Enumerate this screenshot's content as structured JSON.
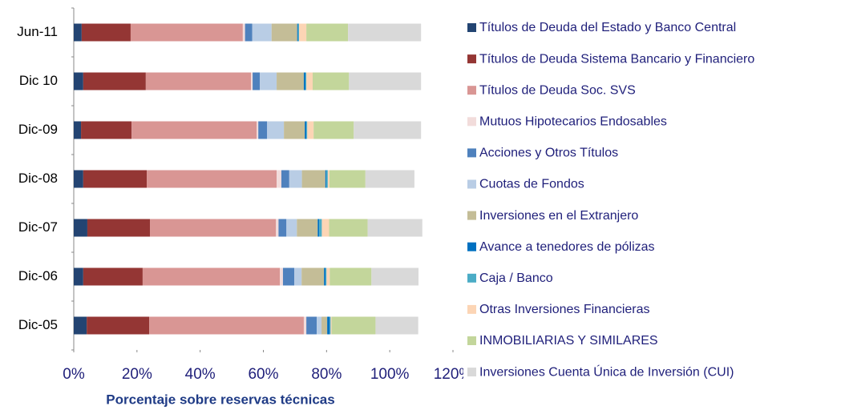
{
  "chart_data": {
    "type": "stacked_barh",
    "categories": [
      "Jun-11",
      "Dic 10",
      "Dic-09",
      "Dic-08",
      "Dic-07",
      "Dic-06",
      "Dic-05"
    ],
    "series": [
      {
        "name": "Títulos de Deuda del Estado y Banco Central",
        "color": "#234472",
        "values": [
          2.5,
          3.0,
          2.3,
          3.0,
          4.3,
          3.0,
          4.1
        ]
      },
      {
        "name": "Títulos de Deuda Sistema Bancario y Financiero",
        "color": "#943634",
        "values": [
          15.5,
          19.8,
          16.0,
          20.1,
          19.8,
          18.8,
          19.8
        ]
      },
      {
        "name": "Títulos de Deuda Soc. SVS",
        "color": "#d99694",
        "values": [
          35.5,
          33.3,
          39.6,
          41.1,
          39.9,
          43.4,
          48.9
        ]
      },
      {
        "name": "Mutuos Hipotecarios Endosables",
        "color": "#f2dcdb",
        "values": [
          0.7,
          0.5,
          0.5,
          1.5,
          0.8,
          1.0,
          0.8
        ]
      },
      {
        "name": "Acciones y Otros Títulos",
        "color": "#4f81bd",
        "values": [
          2.3,
          2.3,
          2.8,
          2.5,
          2.5,
          3.6,
          3.3
        ]
      },
      {
        "name": "Cuotas de Fondos",
        "color": "#b9cde5",
        "values": [
          6.1,
          5.3,
          5.3,
          4.0,
          3.3,
          2.3,
          1.5
        ]
      },
      {
        "name": "Inversiones en el Extranjero",
        "color": "#c4bd97",
        "values": [
          8.1,
          8.6,
          6.6,
          7.4,
          6.6,
          7.1,
          1.8
        ]
      },
      {
        "name": "Avance a tenedores de pólizas",
        "color": "#0070c0",
        "values": [
          0.3,
          0.5,
          0.5,
          0.3,
          0.5,
          0.5,
          0.8
        ]
      },
      {
        "name": "Caja / Banco",
        "color": "#4bacc6",
        "values": [
          0.3,
          0.3,
          0.3,
          0.5,
          0.8,
          0.3,
          0.3
        ]
      },
      {
        "name": "Otras Inversiones Financieras",
        "color": "#fcd5b5",
        "values": [
          2.3,
          2.0,
          2.0,
          0.5,
          2.3,
          1.0,
          0.3
        ]
      },
      {
        "name": "INMOBILIARIAS Y SIMILARES",
        "color": "#c3d69b",
        "values": [
          13.2,
          11.5,
          12.7,
          11.4,
          12.2,
          13.2,
          13.9
        ]
      },
      {
        "name": "Inversiones Cuenta Única de Inversión (CUI)",
        "color": "#d9d9d9",
        "values": [
          23.1,
          22.8,
          21.3,
          15.5,
          17.3,
          14.9,
          13.5
        ]
      }
    ],
    "xlabel": "Porcentaje sobre reservas técnicas",
    "xlim": [
      0,
      120
    ],
    "xticks": [
      {
        "value": 0,
        "label": "0%"
      },
      {
        "value": 20,
        "label": "20%"
      },
      {
        "value": 40,
        "label": "40%"
      },
      {
        "value": 60,
        "label": "60%"
      },
      {
        "value": 80,
        "label": "80%"
      },
      {
        "value": 100,
        "label": "100%"
      },
      {
        "value": 120,
        "label": "120%"
      }
    ],
    "legend": "right"
  }
}
